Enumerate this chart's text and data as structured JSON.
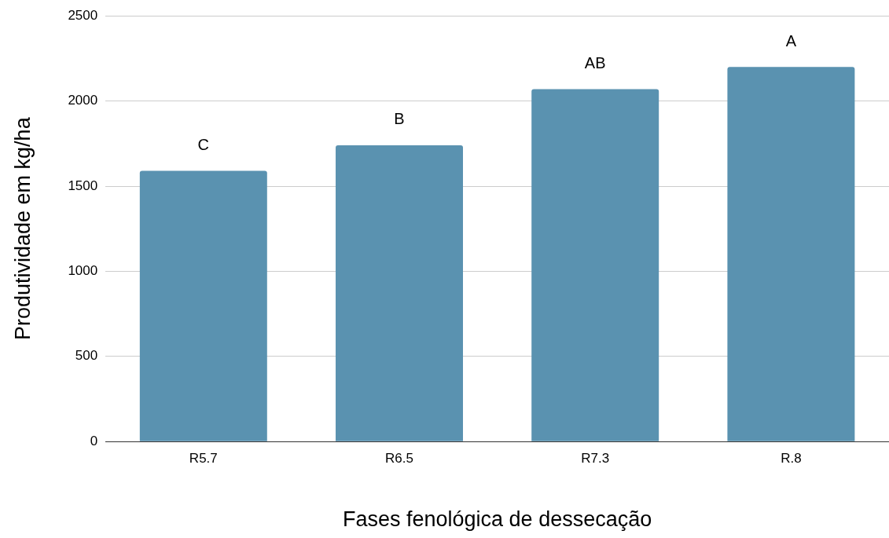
{
  "chart_data": {
    "type": "bar",
    "xlabel": "Fases fenológica de dessecação",
    "ylabel": "Produtividade em kg/ha",
    "categories": [
      "R5.7",
      "R6.5",
      "R7.3",
      "R.8"
    ],
    "values": [
      1590,
      1740,
      2070,
      2200
    ],
    "color": "#5a92b0",
    "ylim": [
      0,
      2500
    ],
    "yticks": [
      0,
      500,
      1000,
      1500,
      2000,
      2500
    ],
    "grid": "y",
    "legend": false,
    "annotations": [
      {
        "text": "C",
        "x": "R5.7",
        "y": 1590
      },
      {
        "text": "B",
        "x": "R6.5",
        "y": 1740
      },
      {
        "text": "AB",
        "x": "R7.3",
        "y": 2070
      },
      {
        "text": "A",
        "x": "R.8",
        "y": 2200
      }
    ]
  }
}
